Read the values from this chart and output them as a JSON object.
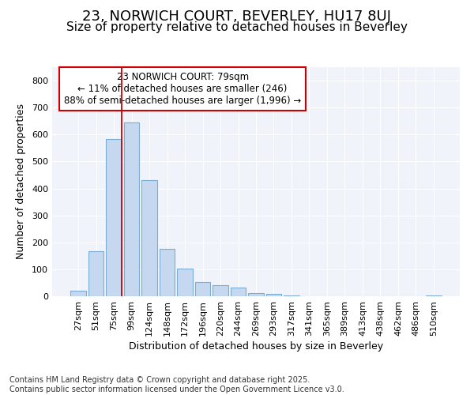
{
  "title1": "23, NORWICH COURT, BEVERLEY, HU17 8UJ",
  "title2": "Size of property relative to detached houses in Beverley",
  "xlabel": "Distribution of detached houses by size in Beverley",
  "ylabel": "Number of detached properties",
  "categories": [
    "27sqm",
    "51sqm",
    "75sqm",
    "99sqm",
    "124sqm",
    "148sqm",
    "172sqm",
    "196sqm",
    "220sqm",
    "244sqm",
    "269sqm",
    "293sqm",
    "317sqm",
    "341sqm",
    "365sqm",
    "389sqm",
    "413sqm",
    "438sqm",
    "462sqm",
    "486sqm",
    "510sqm"
  ],
  "values": [
    20,
    168,
    582,
    645,
    430,
    175,
    102,
    52,
    40,
    33,
    12,
    10,
    2,
    1,
    1,
    0,
    0,
    0,
    0,
    0,
    2
  ],
  "bar_color": "#c5d8f0",
  "bar_edge_color": "#7aadd4",
  "vline_x_index": 2,
  "vline_color": "#cc0000",
  "annotation_text": "23 NORWICH COURT: 79sqm\n← 11% of detached houses are smaller (246)\n88% of semi-detached houses are larger (1,996) →",
  "annotation_box_facecolor": "#ffffff",
  "annotation_box_edgecolor": "#cc0000",
  "ylim": [
    0,
    850
  ],
  "yticks": [
    0,
    100,
    200,
    300,
    400,
    500,
    600,
    700,
    800
  ],
  "fig_bg_color": "#ffffff",
  "plot_bg_color": "#f0f4fa",
  "grid_color": "#ffffff",
  "footer1": "Contains HM Land Registry data © Crown copyright and database right 2025.",
  "footer2": "Contains public sector information licensed under the Open Government Licence v3.0.",
  "title1_fontsize": 13,
  "title2_fontsize": 11,
  "annot_fontsize": 8.5,
  "xlabel_fontsize": 9,
  "ylabel_fontsize": 9,
  "tick_fontsize": 8,
  "footer_fontsize": 7
}
